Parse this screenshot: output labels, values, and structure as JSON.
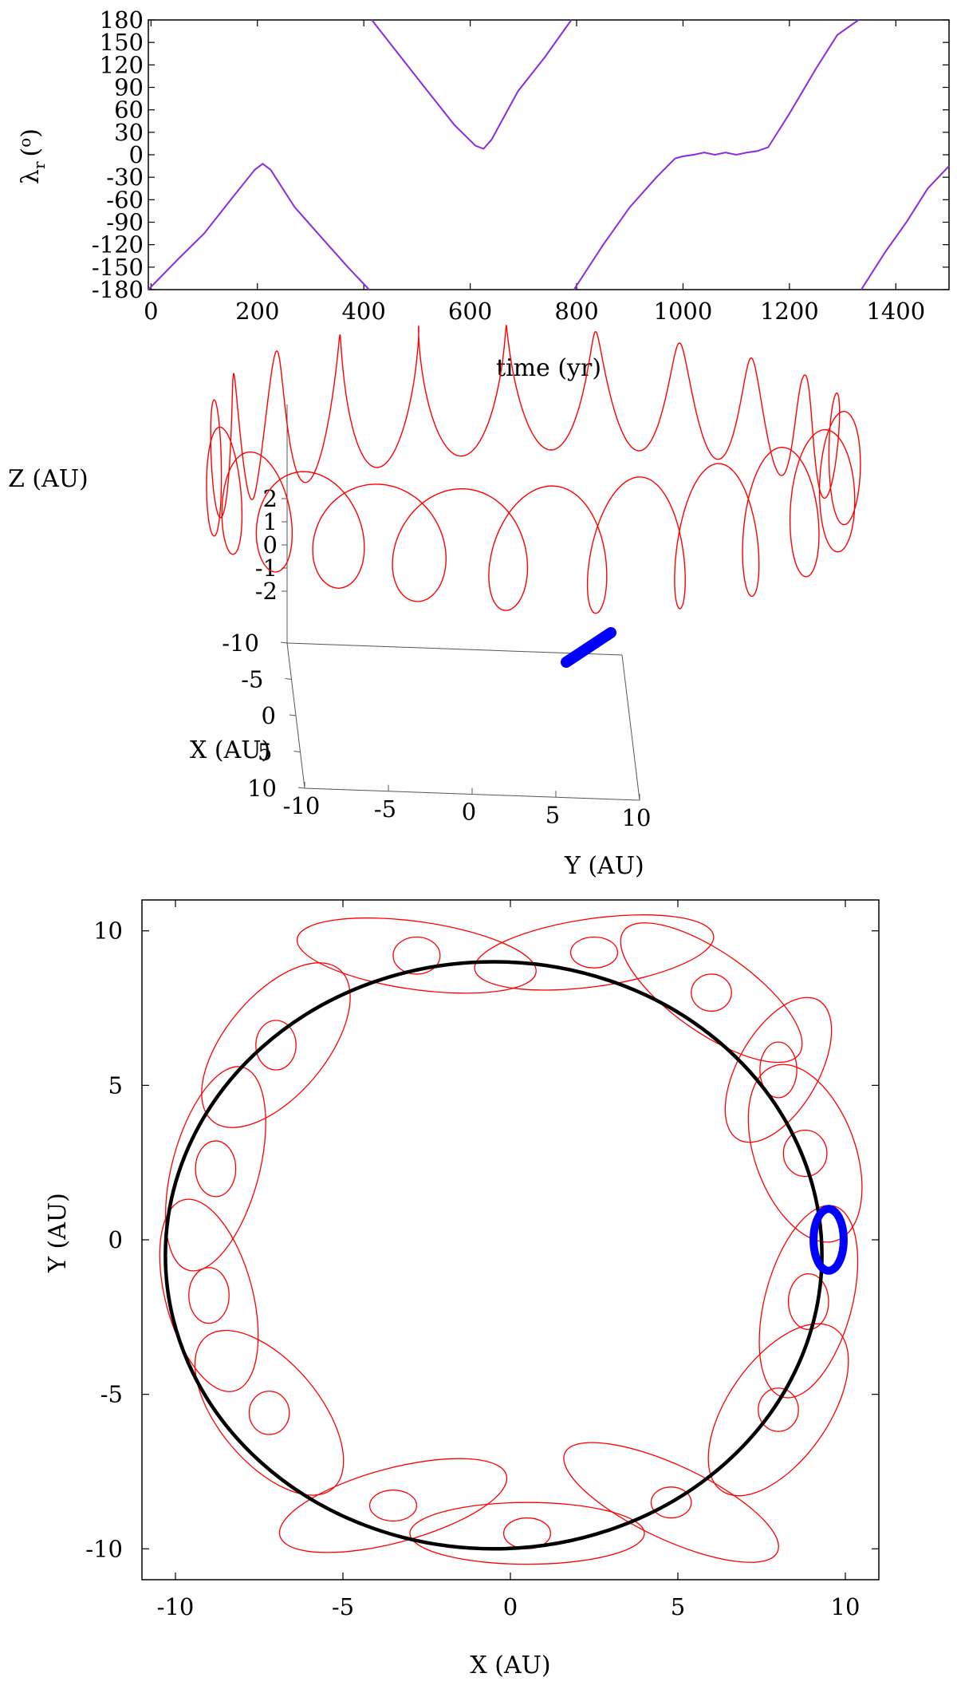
{
  "chart_data": [
    {
      "type": "line",
      "panel": "top",
      "xlabel": "time (yr)",
      "ylabel_symbol": "λ",
      "ylabel_sub": "r",
      "ylabel_unit": "(",
      "ylabel_sup": "o",
      "ylabel_close": ")",
      "xlim": [
        -5,
        1500
      ],
      "ylim": [
        -180,
        180
      ],
      "xticks": [
        0,
        200,
        400,
        600,
        800,
        1000,
        1200,
        1400
      ],
      "yticks": [
        -180,
        -150,
        -120,
        -90,
        -60,
        -30,
        0,
        30,
        60,
        90,
        120,
        150,
        180
      ],
      "series_color": "#8a2be2",
      "grid": false,
      "segments": [
        {
          "name": "",
          "x": [
            -5,
            50,
            100,
            150,
            195,
            210,
            225,
            270,
            320,
            370,
            410
          ],
          "y": [
            -180,
            -140,
            -105,
            -60,
            -20,
            -12,
            -20,
            -70,
            -110,
            -150,
            -180
          ]
        },
        {
          "name": "",
          "x": [
            415,
            470,
            520,
            570,
            610,
            625,
            640,
            690,
            740,
            790
          ],
          "y": [
            180,
            130,
            85,
            40,
            12,
            8,
            20,
            85,
            130,
            180
          ]
        },
        {
          "name": "",
          "x": [
            795,
            850,
            900,
            950,
            985,
            1000,
            1020,
            1040,
            1060,
            1080,
            1100,
            1120,
            1140,
            1160,
            1200,
            1250,
            1290,
            1330
          ],
          "y": [
            -180,
            -120,
            -70,
            -30,
            -5,
            -2,
            0,
            3,
            0,
            3,
            0,
            3,
            5,
            10,
            55,
            115,
            160,
            180
          ]
        },
        {
          "name": "",
          "x": [
            1335,
            1380,
            1420,
            1460,
            1500
          ],
          "y": [
            -180,
            -130,
            -90,
            -45,
            -15
          ]
        }
      ]
    },
    {
      "type": "scatter",
      "panel": "middle-3d",
      "xlabel": "X (AU)",
      "ylabel": "Y (AU)",
      "zlabel": "Z (AU)",
      "xticks": [
        -10,
        -5,
        0,
        5,
        10
      ],
      "yticks": [
        -10,
        -5,
        0,
        5,
        10
      ],
      "zticks": [
        -2,
        -1,
        0,
        1,
        2
      ],
      "xlim": [
        -10,
        10
      ],
      "ylim": [
        -10,
        10
      ],
      "zlim": [
        -2.5,
        2.5
      ],
      "orbit_radius": 9.5,
      "loops": 22,
      "loop_radius": 1.4,
      "loop_height": 2.2,
      "series": [
        {
          "name": "",
          "color": "#ff0000"
        },
        {
          "name": "",
          "color": "#0000ff"
        }
      ],
      "blue_segment": [
        [
          9.2,
          -1.0,
          -0.6
        ],
        [
          9.8,
          1.0,
          0.6
        ]
      ]
    },
    {
      "type": "scatter",
      "panel": "bottom",
      "xlabel": "X (AU)",
      "ylabel": "Y (AU)",
      "xticks": [
        -10,
        -5,
        0,
        5,
        10
      ],
      "yticks": [
        -10,
        -5,
        0,
        5,
        10
      ],
      "xlim": [
        -11,
        11
      ],
      "ylim": [
        -11,
        11
      ],
      "circle": {
        "cx": -0.5,
        "cy": -0.5,
        "rx": 9.8,
        "ry": 9.5,
        "color": "#000000"
      },
      "blue_ellipse": {
        "cx": 9.5,
        "cy": 0,
        "rx": 0.45,
        "ry": 1.0,
        "color": "#0000ff"
      },
      "red_loops": [
        {
          "center": [
            8.8,
            2.8
          ],
          "big": [
            1.5,
            3.0,
            -20
          ],
          "small": [
            0.65,
            0.75
          ]
        },
        {
          "center": [
            8.0,
            5.5
          ],
          "big": [
            1.2,
            2.6,
            30
          ],
          "small": [
            0.55,
            0.9
          ]
        },
        {
          "center": [
            6.0,
            8.0
          ],
          "big": [
            3.2,
            1.3,
            35
          ],
          "small": [
            0.6,
            0.6
          ]
        },
        {
          "center": [
            2.5,
            9.3
          ],
          "big": [
            3.6,
            1.1,
            -8
          ],
          "small": [
            0.7,
            0.5
          ]
        },
        {
          "center": [
            -2.8,
            9.2
          ],
          "big": [
            3.6,
            1.1,
            8
          ],
          "small": [
            0.7,
            0.6
          ]
        },
        {
          "center": [
            -7.0,
            6.3
          ],
          "big": [
            1.5,
            3.2,
            40
          ],
          "small": [
            0.6,
            0.8
          ]
        },
        {
          "center": [
            -8.8,
            2.3
          ],
          "big": [
            1.3,
            3.4,
            15
          ],
          "small": [
            0.6,
            0.9
          ]
        },
        {
          "center": [
            -9.0,
            -1.8
          ],
          "big": [
            1.3,
            3.2,
            -15
          ],
          "small": [
            0.6,
            0.9
          ]
        },
        {
          "center": [
            -7.2,
            -5.6
          ],
          "big": [
            1.5,
            3.2,
            -40
          ],
          "small": [
            0.6,
            0.7
          ]
        },
        {
          "center": [
            -3.5,
            -8.6
          ],
          "big": [
            3.5,
            1.2,
            -15
          ],
          "small": [
            0.7,
            0.5
          ]
        },
        {
          "center": [
            0.5,
            -9.5
          ],
          "big": [
            3.5,
            1.0,
            0
          ],
          "small": [
            0.7,
            0.5
          ]
        },
        {
          "center": [
            4.8,
            -8.5
          ],
          "big": [
            3.5,
            1.2,
            25
          ],
          "small": [
            0.6,
            0.5
          ]
        },
        {
          "center": [
            8.0,
            -5.5
          ],
          "big": [
            1.5,
            3.2,
            35
          ],
          "small": [
            0.6,
            0.7
          ]
        },
        {
          "center": [
            8.9,
            -2.0
          ],
          "big": [
            1.3,
            3.2,
            15
          ],
          "small": [
            0.6,
            0.9
          ]
        }
      ]
    }
  ]
}
